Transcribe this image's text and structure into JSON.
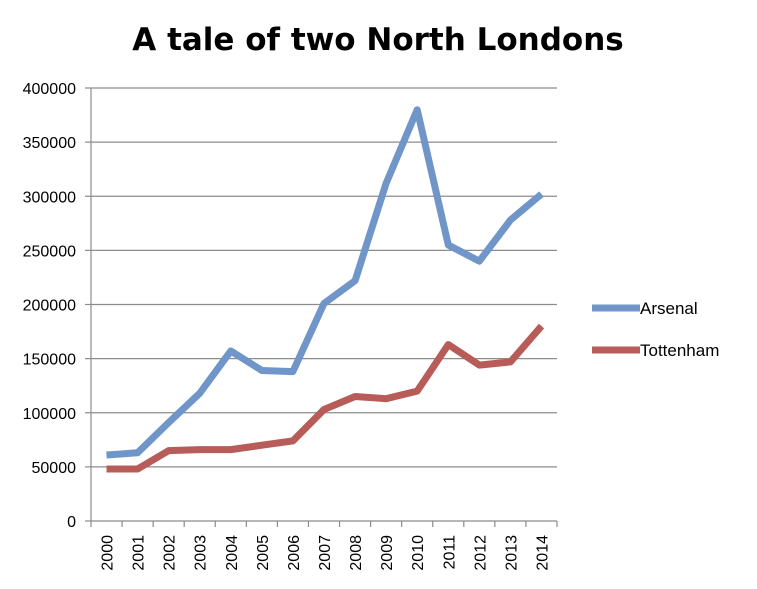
{
  "chart_data": {
    "type": "line",
    "title": "A tale of two North Londons",
    "xlabel": "",
    "ylabel": "",
    "categories": [
      "2000",
      "2001",
      "2002",
      "2003",
      "2004",
      "2005",
      "2006",
      "2007",
      "2008",
      "2009",
      "2010",
      "2011",
      "2012",
      "2013",
      "2014"
    ],
    "ylim": [
      0,
      400000
    ],
    "yticks": [
      0,
      50000,
      100000,
      150000,
      200000,
      250000,
      300000,
      350000,
      400000
    ],
    "ytick_labels": [
      "0",
      "50000",
      "100000",
      "150000",
      "200000",
      "250000",
      "300000",
      "350000",
      "400000"
    ],
    "grid": true,
    "legend_position": "right",
    "series": [
      {
        "name": "Arsenal",
        "color": "#6f95c9",
        "values": [
          61000,
          63000,
          91000,
          118000,
          157000,
          139000,
          138000,
          201000,
          222000,
          312000,
          380000,
          255000,
          240000,
          278000,
          302000
        ]
      },
      {
        "name": "Tottenham",
        "color": "#b85c59",
        "values": [
          48000,
          48000,
          65000,
          66000,
          66000,
          70000,
          74000,
          103000,
          115000,
          113000,
          120000,
          163000,
          144000,
          147000,
          180000
        ]
      }
    ]
  }
}
